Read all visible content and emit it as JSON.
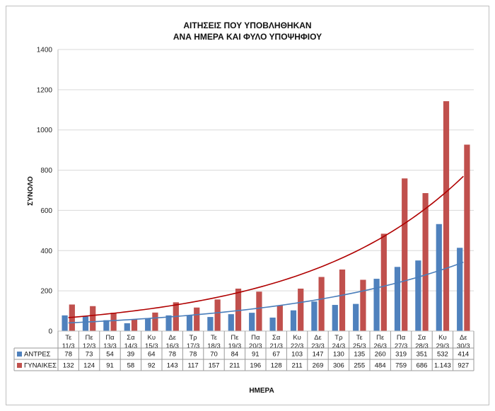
{
  "chart_data": {
    "type": "bar",
    "title_line1": "ΑΙΤΗΣΕΙΣ ΠΟΥ ΥΠΟΒΛΗΘΗΚΑΝ",
    "title_line2": "ΑΝΑ ΗΜΕΡΑ ΚΑΙ ΦΥΛΟ ΥΠΟΨΗΦΙΟΥ",
    "xlabel": "ΗΜΕΡΑ",
    "ylabel": "ΣΥΝΟΛΟ",
    "ylim": [
      0,
      1400
    ],
    "yticks": [
      "0",
      "200",
      "400",
      "600",
      "800",
      "1000",
      "1200",
      "1400"
    ],
    "grid": true,
    "categories": [
      {
        "day": "Τε",
        "date": "11/3"
      },
      {
        "day": "Πε",
        "date": "12/3"
      },
      {
        "day": "Πα",
        "date": "13/3"
      },
      {
        "day": "Σα",
        "date": "14/3"
      },
      {
        "day": "Κυ",
        "date": "15/3"
      },
      {
        "day": "Δε",
        "date": "16/3"
      },
      {
        "day": "Τρ",
        "date": "17/3"
      },
      {
        "day": "Τε",
        "date": "18/3"
      },
      {
        "day": "Πε",
        "date": "19/3"
      },
      {
        "day": "Πα",
        "date": "20/3"
      },
      {
        "day": "Σα",
        "date": "21/3"
      },
      {
        "day": "Κυ",
        "date": "22/3"
      },
      {
        "day": "Δε",
        "date": "23/3"
      },
      {
        "day": "Τρ",
        "date": "24/3"
      },
      {
        "day": "Τε",
        "date": "25/3"
      },
      {
        "day": "Πε",
        "date": "26/3"
      },
      {
        "day": "Πα",
        "date": "27/3"
      },
      {
        "day": "Σα",
        "date": "28/3"
      },
      {
        "day": "Κυ",
        "date": "29/3"
      },
      {
        "day": "Δε",
        "date": "30/3"
      }
    ],
    "series": [
      {
        "name": "ΑΝΤΡΕΣ",
        "color": "#4f81bd",
        "trend_color": "#4a7ebb",
        "values": [
          78,
          73,
          54,
          39,
          64,
          78,
          78,
          70,
          84,
          91,
          67,
          103,
          147,
          130,
          135,
          260,
          319,
          351,
          532,
          414
        ],
        "labels": [
          "78",
          "73",
          "54",
          "39",
          "64",
          "78",
          "78",
          "70",
          "84",
          "91",
          "67",
          "103",
          "147",
          "130",
          "135",
          "260",
          "319",
          "351",
          "532",
          "414"
        ]
      },
      {
        "name": "ΓΥΝΑΙΚΕΣ",
        "color": "#c0504d",
        "trend_color": "#b00000",
        "values": [
          132,
          124,
          91,
          58,
          92,
          143,
          117,
          157,
          211,
          196,
          128,
          211,
          269,
          306,
          255,
          484,
          759,
          686,
          1143,
          927
        ],
        "labels": [
          "132",
          "124",
          "91",
          "58",
          "92",
          "143",
          "117",
          "157",
          "211",
          "196",
          "128",
          "211",
          "269",
          "306",
          "255",
          "484",
          "759",
          "686",
          "1.143",
          "927"
        ]
      }
    ],
    "trendlines": "exponential"
  }
}
